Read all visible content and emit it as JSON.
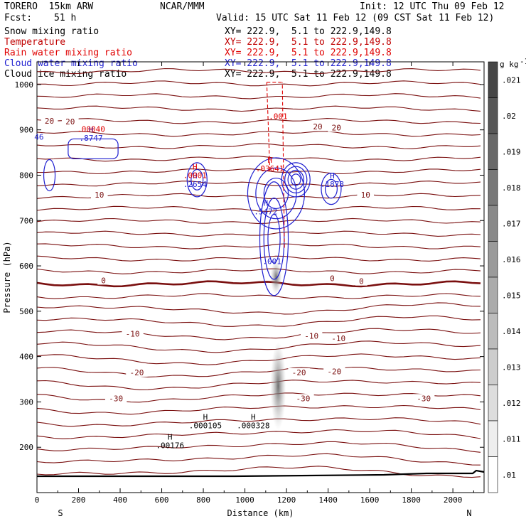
{
  "header": {
    "model": "TORERO  15km ARW",
    "org": "NCAR/MMM",
    "init": "Init: 12 UTC Thu 09 Feb 12",
    "fcst_label": "Fcst:",
    "fcst_value": "51 h",
    "valid": "Valid: 15 UTC Sat 11 Feb 12 (09 CST Sat 11 Feb 12)"
  },
  "fields": [
    {
      "name": "Snow mixing ratio",
      "xy": "XY= 222.9,  5.1 to 222.9,149.8",
      "color": "#000000"
    },
    {
      "name": "Temperature",
      "xy": "XY= 222.9,  5.1 to 222.9,149.8",
      "color": "#c00000"
    },
    {
      "name": "Rain water mixing ratio",
      "xy": "XY= 222.9,  5.1 to 222.9,149.8",
      "color": "#e00000"
    },
    {
      "name": "Cloud water mixing ratio",
      "xy": "XY= 222.9,  5.1 to 222.9,149.8",
      "color": "#1f1fd0"
    },
    {
      "name": "Cloud ice mixing ratio",
      "xy": "XY= 222.9,  5.1 to 222.9,149.8",
      "color": "#000000"
    }
  ],
  "chart_data": {
    "type": "contour-cross-section",
    "xlabel": "Distance (km)",
    "ylabel": "Pressure (hPa)",
    "xlim": [
      0,
      2150
    ],
    "ylim": [
      1050,
      100
    ],
    "x_ticks": [
      0,
      200,
      400,
      600,
      800,
      1000,
      1200,
      1400,
      1600,
      1800,
      2000
    ],
    "y_ticks": [
      200,
      300,
      400,
      500,
      600,
      700,
      800,
      900,
      1000
    ],
    "endpoints": {
      "left": "S",
      "right": "N"
    },
    "colorbar": {
      "unit": "g kg",
      "unit_exp": "-1",
      "levels": [
        ".021",
        ".02",
        ".019",
        ".018",
        ".017",
        ".016",
        ".015",
        ".014",
        ".013",
        ".012",
        ".011",
        ".01"
      ]
    },
    "temperature_labels": [
      {
        "text": "-30",
        "x": 380,
        "p": 308
      },
      {
        "text": "-30",
        "x": 1280,
        "p": 308
      },
      {
        "text": "-30",
        "x": 1860,
        "p": 308
      },
      {
        "text": "-20",
        "x": 480,
        "p": 365
      },
      {
        "text": "-20",
        "x": 1260,
        "p": 365
      },
      {
        "text": "-20",
        "x": 1430,
        "p": 367
      },
      {
        "text": "-10",
        "x": 460,
        "p": 450
      },
      {
        "text": "-10",
        "x": 1320,
        "p": 446
      },
      {
        "text": "-10",
        "x": 1450,
        "p": 440
      },
      {
        "text": "0",
        "x": 320,
        "p": 568
      },
      {
        "text": "0",
        "x": 1420,
        "p": 573
      },
      {
        "text": "0",
        "x": 1560,
        "p": 566
      },
      {
        "text": "10",
        "x": 300,
        "p": 757
      },
      {
        "text": "10",
        "x": 1580,
        "p": 757
      },
      {
        "text": "20",
        "x": 60,
        "p": 920
      },
      {
        "text": "20",
        "x": 160,
        "p": 918
      },
      {
        "text": "20",
        "x": 1350,
        "p": 907
      },
      {
        "text": "20",
        "x": 1440,
        "p": 905
      }
    ],
    "extrema_labels": [
      {
        "mark": "H",
        "value": ".00176",
        "x": 640,
        "p": 204,
        "color": "#000000"
      },
      {
        "mark": "H",
        "value": ".000105",
        "x": 810,
        "p": 248,
        "color": "#000000"
      },
      {
        "mark": "H",
        "value": ".000328",
        "x": 1040,
        "p": 248,
        "color": "#000000"
      },
      {
        "mark": "",
        "value": ".001",
        "x": 1130,
        "p": 610,
        "color": "#1f1fd0"
      },
      {
        "mark": "H",
        "value": ".5472",
        "x": 1100,
        "p": 720,
        "color": "#1f1fd0"
      },
      {
        "mark": "H",
        "value": ".2654",
        "x": 760,
        "p": 780,
        "color": "#1f1fd0"
      },
      {
        "mark": "H",
        "value": ".0001",
        "x": 760,
        "p": 800,
        "color": "#e00000"
      },
      {
        "mark": "H",
        "value": ".1878",
        "x": 1420,
        "p": 780,
        "color": "#1f1fd0"
      },
      {
        "mark": "H",
        "value": ".03641",
        "x": 1120,
        "p": 815,
        "color": "#e00000"
      },
      {
        "mark": "H",
        "value": ".8747",
        "x": 260,
        "p": 882,
        "color": "#1f1fd0"
      },
      {
        "mark": "",
        "value": ".00040",
        "x": 260,
        "p": 902,
        "color": "#e00000"
      },
      {
        "mark": "",
        "value": "46",
        "x": 10,
        "p": 885,
        "color": "#1f1fd0"
      },
      {
        "mark": "",
        "value": ".001",
        "x": 1160,
        "p": 930,
        "color": "#e00000"
      }
    ]
  }
}
